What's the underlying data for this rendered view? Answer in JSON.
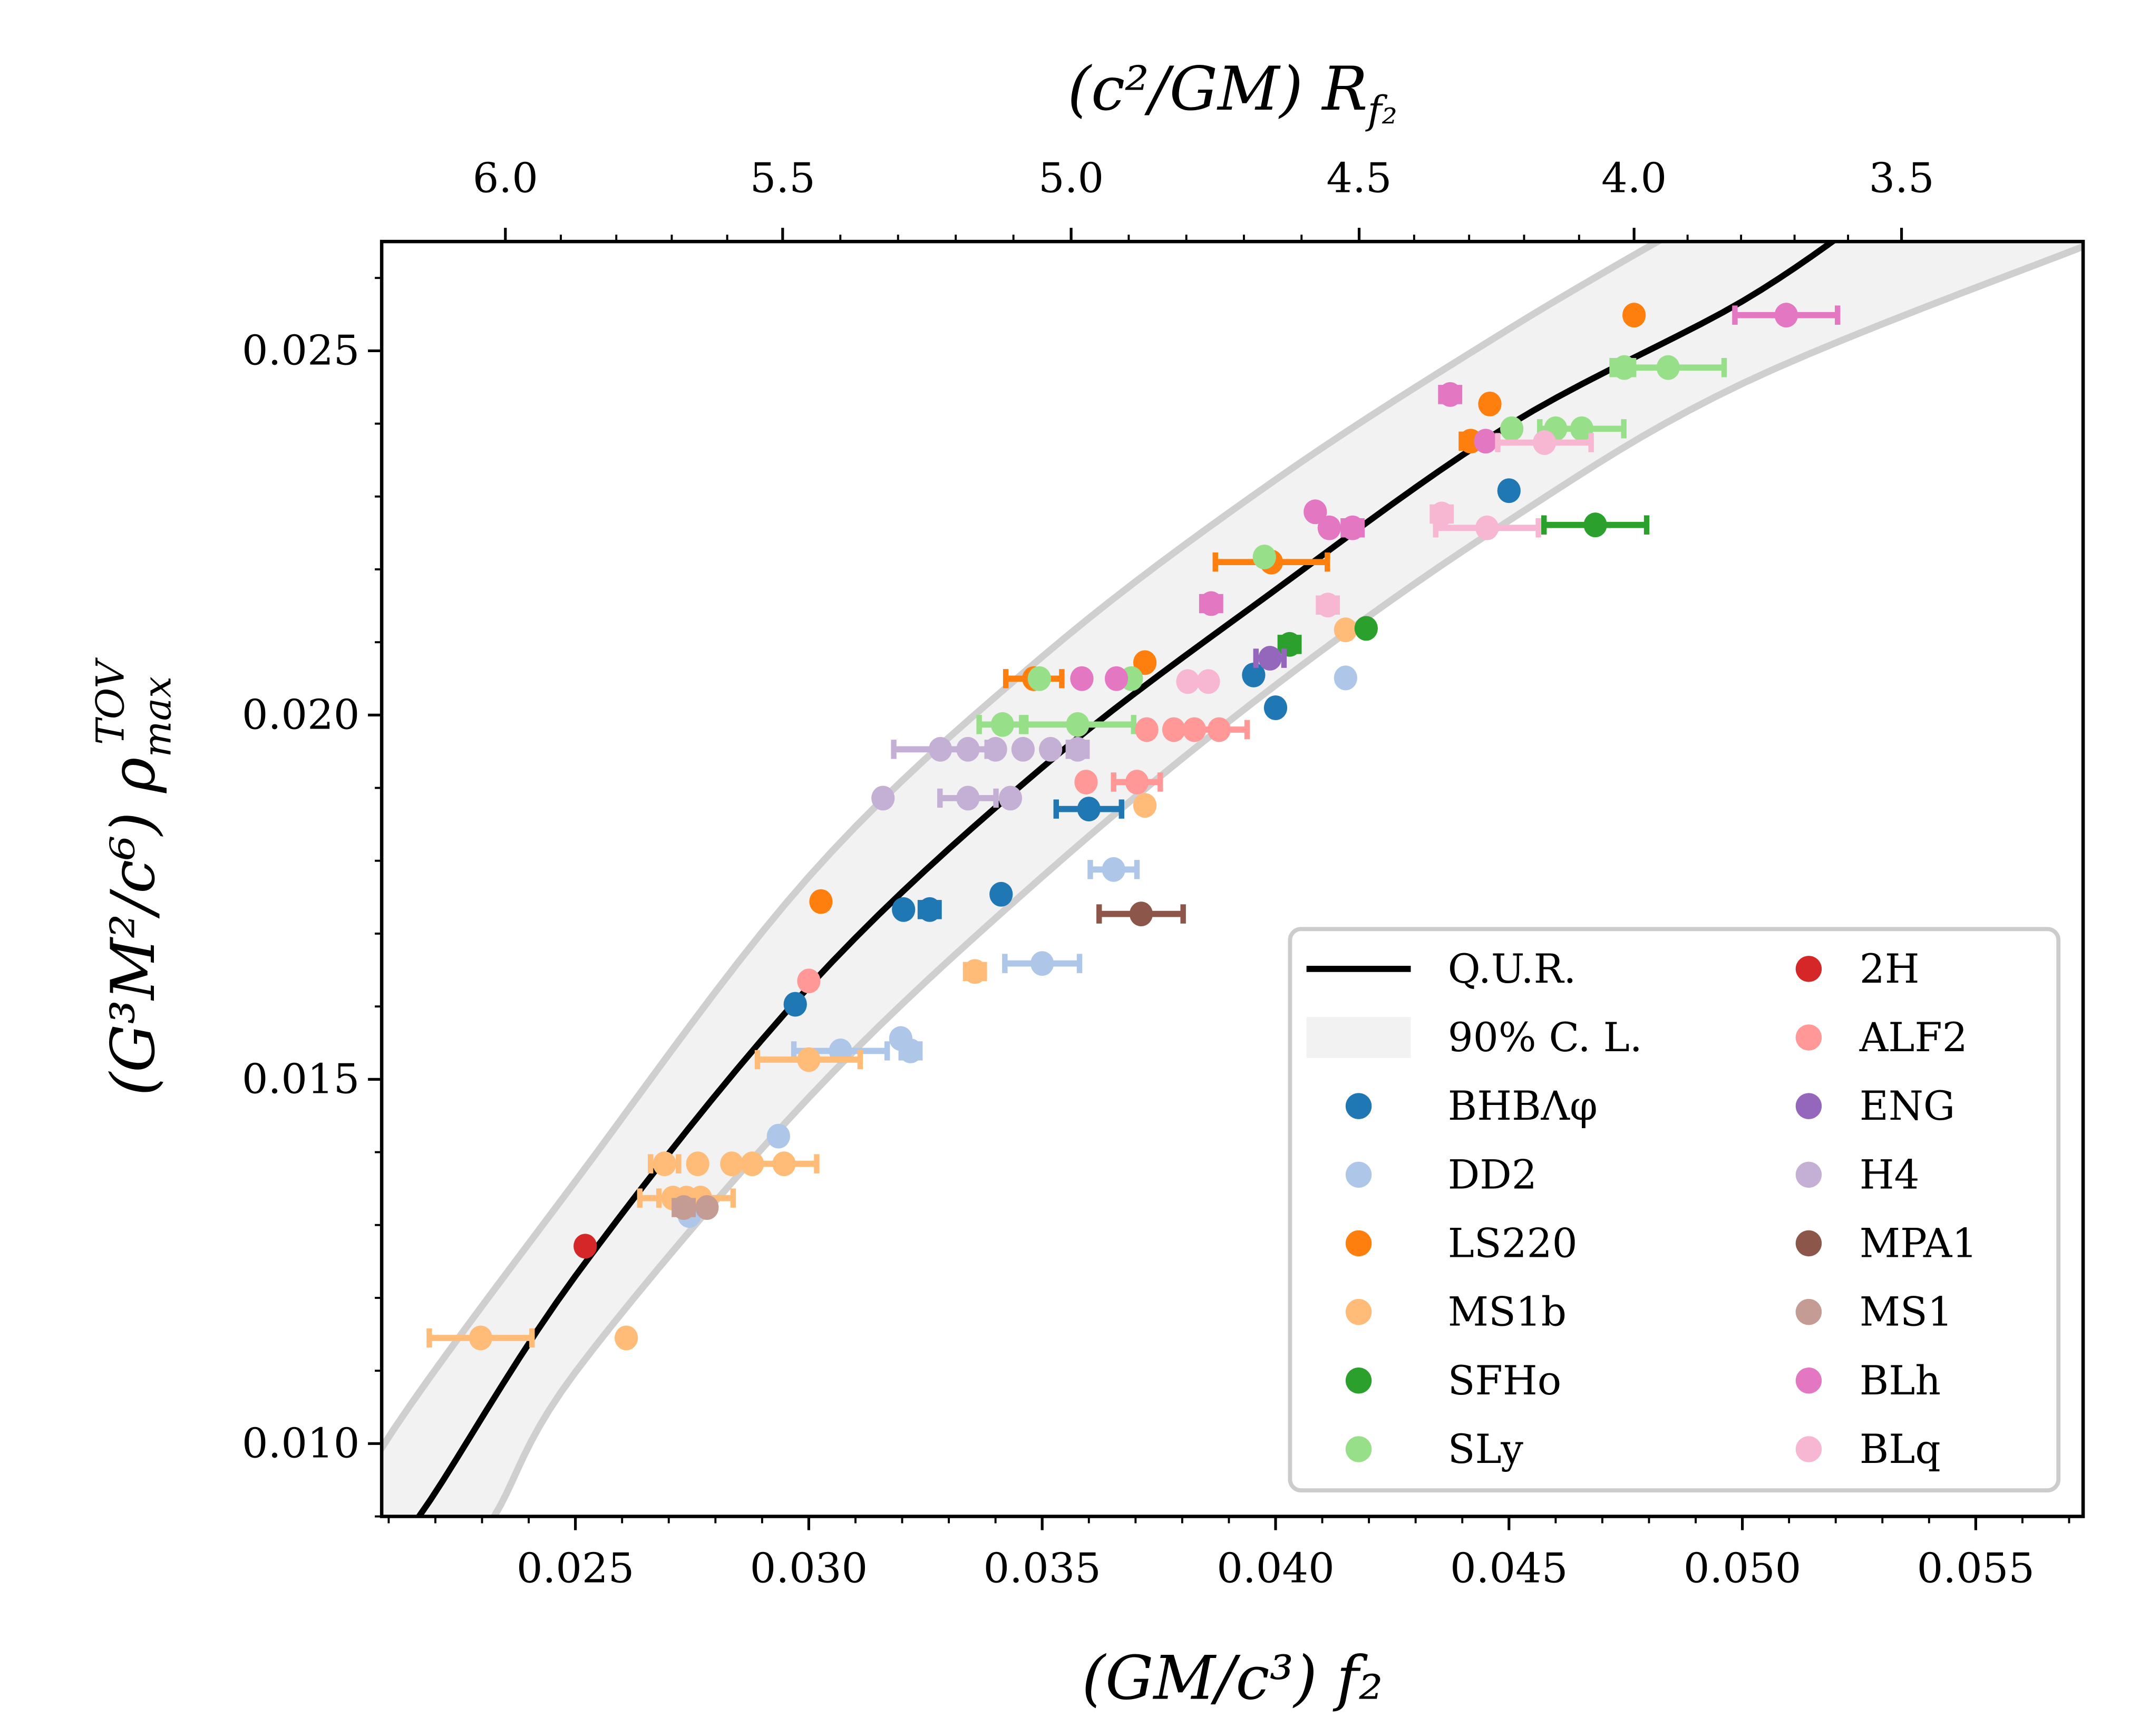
{
  "chart_data": {
    "type": "scatter",
    "xlabel": "(GM/c³) f₂",
    "top_xlabel": "(c²/GM) R",
    "top_xlabel_sub": "f₂",
    "ylabel_main": "(G³M²/c⁶) ρ",
    "ylabel_sub": "max",
    "ylabel_sup": "TOV",
    "xlim": [
      0.02085,
      0.0573
    ],
    "ylim": [
      0.009,
      0.0265
    ],
    "xticks": [
      "0.025",
      "0.030",
      "0.035",
      "0.040",
      "0.045",
      "0.050",
      "0.055"
    ],
    "yticks": [
      "0.010",
      "0.015",
      "0.020",
      "0.025"
    ],
    "top_xticks": [
      {
        "label": "6.0",
        "f": 0.0235
      },
      {
        "label": "5.5",
        "f": 0.02944
      },
      {
        "label": "5.0",
        "f": 0.03562
      },
      {
        "label": "4.5",
        "f": 0.04179
      },
      {
        "label": "4.0",
        "f": 0.04768
      },
      {
        "label": "3.5",
        "f": 0.05341
      }
    ],
    "grid": false,
    "legend_placement": "lower-right",
    "qur": {
      "name": "Q.U.R.",
      "color": "#000000",
      "points": [
        [
          0.0205,
          0.0083
        ],
        [
          0.02165,
          0.009
        ],
        [
          0.025,
          0.0123
        ],
        [
          0.03,
          0.01627
        ],
        [
          0.035,
          0.01928
        ],
        [
          0.04,
          0.02172
        ],
        [
          0.045,
          0.02398
        ],
        [
          0.05,
          0.02568
        ],
        [
          0.053,
          0.027
        ]
      ]
    },
    "band": {
      "name": "90% C. L.",
      "fill": "#f2f2f2",
      "edge": "#cfcfcf",
      "upper": [
        [
          0.02,
          0.0085
        ],
        [
          0.02085,
          0.00994
        ],
        [
          0.025,
          0.0136
        ],
        [
          0.03,
          0.01778
        ],
        [
          0.035,
          0.0208
        ],
        [
          0.04,
          0.02323
        ],
        [
          0.045,
          0.0253
        ],
        [
          0.049,
          0.0268
        ]
      ],
      "lower": [
        [
          0.022,
          0.0078
        ],
        [
          0.02326,
          0.009
        ],
        [
          0.025,
          0.01098
        ],
        [
          0.03,
          0.01475
        ],
        [
          0.035,
          0.01778
        ],
        [
          0.04,
          0.02041
        ],
        [
          0.045,
          0.02267
        ],
        [
          0.05,
          0.02455
        ],
        [
          0.0573,
          0.02643
        ],
        [
          0.059,
          0.0268
        ]
      ]
    },
    "series": [
      {
        "name": "BHBΛφ",
        "color": "#1f77b4",
        "points": [
          [
            0.02971,
            0.01603,
            0
          ],
          [
            0.03203,
            0.01733,
            0
          ],
          [
            0.03259,
            0.01733,
            0.0002
          ],
          [
            0.03412,
            0.01754,
            0
          ],
          [
            0.036,
            0.01871,
            0.0007
          ],
          [
            0.03953,
            0.02055,
            0
          ],
          [
            0.04,
            0.0201,
            0
          ],
          [
            0.045,
            0.02308,
            0
          ]
        ]
      },
      {
        "name": "DD2",
        "color": "#aec7e8",
        "points": [
          [
            0.02744,
            0.01313,
            0
          ],
          [
            0.02935,
            0.01422,
            0
          ],
          [
            0.03068,
            0.01539,
            0.001
          ],
          [
            0.03197,
            0.01556,
            0
          ],
          [
            0.03218,
            0.01539,
            0.0002
          ],
          [
            0.035,
            0.01659,
            0.0008
          ],
          [
            0.03653,
            0.01788,
            0.0005
          ],
          [
            0.0415,
            0.02051,
            0
          ]
        ]
      },
      {
        "name": "LS220",
        "color": "#ff7f0e",
        "points": [
          [
            0.03026,
            0.01744,
            0
          ],
          [
            0.03482,
            0.0205,
            0.0006
          ],
          [
            0.0372,
            0.02072,
            0
          ],
          [
            0.03991,
            0.0221,
            0.0012
          ],
          [
            0.04418,
            0.02376,
            0.0002
          ],
          [
            0.04459,
            0.02427,
            0
          ],
          [
            0.04768,
            0.02549,
            0
          ]
        ]
      },
      {
        "name": "MS1b",
        "color": "#ffbb78",
        "points": [
          [
            0.02297,
            0.01145,
            0.0011
          ],
          [
            0.02609,
            0.01145,
            0
          ],
          [
            0.02691,
            0.01384,
            0.0003
          ],
          [
            0.02762,
            0.01384,
            0
          ],
          [
            0.02835,
            0.01384,
            0
          ],
          [
            0.02879,
            0.01384,
            0
          ],
          [
            0.02947,
            0.01384,
            0.0007
          ],
          [
            0.02709,
            0.01337,
            0.0003
          ],
          [
            0.02738,
            0.01337,
            0.001
          ],
          [
            0.02768,
            0.01337,
            0
          ],
          [
            0.03,
            0.01527,
            0.0011
          ],
          [
            0.03356,
            0.01648,
            0.0002
          ],
          [
            0.0372,
            0.01876,
            0
          ],
          [
            0.0415,
            0.02117,
            0
          ]
        ]
      },
      {
        "name": "SFHo",
        "color": "#2ca02c",
        "points": [
          [
            0.0403,
            0.02097,
            0.0002
          ],
          [
            0.04194,
            0.02119,
            0
          ],
          [
            0.04685,
            0.02261,
            0.0011
          ]
        ]
      },
      {
        "name": "SLy",
        "color": "#98df8a",
        "points": [
          [
            0.03494,
            0.0205,
            0
          ],
          [
            0.03691,
            0.0205,
            0
          ],
          [
            0.03415,
            0.01987,
            0.0005
          ],
          [
            0.03576,
            0.01987,
            0.0012
          ],
          [
            0.03976,
            0.02217,
            0
          ],
          [
            0.04506,
            0.02393,
            0
          ],
          [
            0.046,
            0.02393,
            0
          ],
          [
            0.04656,
            0.02393,
            0.0009
          ],
          [
            0.04747,
            0.02477,
            0.0002
          ],
          [
            0.04841,
            0.02477,
            0.0012
          ]
        ]
      },
      {
        "name": "2H",
        "color": "#d62728",
        "points": [
          [
            0.02521,
            0.01271,
            0
          ]
        ]
      },
      {
        "name": "ALF2",
        "color": "#ff9896",
        "points": [
          [
            0.03,
            0.01635,
            0
          ],
          [
            0.03594,
            0.01908,
            0
          ],
          [
            0.03703,
            0.01908,
            0.0005
          ],
          [
            0.03724,
            0.0198,
            0
          ],
          [
            0.03782,
            0.0198,
            0
          ],
          [
            0.03826,
            0.0198,
            0
          ],
          [
            0.03879,
            0.0198,
            0.0006
          ]
        ]
      },
      {
        "name": "ENG",
        "color": "#9467bd",
        "points": [
          [
            0.03988,
            0.02078,
            0.0003
          ]
        ]
      },
      {
        "name": "H4",
        "color": "#c5b0d5",
        "points": [
          [
            0.03159,
            0.01886,
            0
          ],
          [
            0.03341,
            0.01886,
            0.0006
          ],
          [
            0.03432,
            0.01886,
            0
          ],
          [
            0.03282,
            0.01953,
            0.001
          ],
          [
            0.03341,
            0.01953,
            0
          ],
          [
            0.034,
            0.01953,
            0
          ],
          [
            0.03459,
            0.01953,
            0
          ],
          [
            0.03518,
            0.01953,
            0
          ],
          [
            0.03576,
            0.01953,
            0.0002
          ]
        ]
      },
      {
        "name": "MPA1",
        "color": "#8c564b",
        "points": [
          [
            0.03712,
            0.01727,
            0.0009
          ]
        ]
      },
      {
        "name": "MS1",
        "color": "#c49c94",
        "points": [
          [
            0.02732,
            0.01324,
            0.0002
          ],
          [
            0.02782,
            0.01324,
            0
          ]
        ]
      },
      {
        "name": "BLh",
        "color": "#e377c2",
        "points": [
          [
            0.03585,
            0.0205,
            0
          ],
          [
            0.03659,
            0.0205,
            0
          ],
          [
            0.03862,
            0.02153,
            0.0002
          ],
          [
            0.04085,
            0.02279,
            0
          ],
          [
            0.04115,
            0.02257,
            0
          ],
          [
            0.04165,
            0.02257,
            0.0002
          ],
          [
            0.04374,
            0.0244,
            0.0002
          ],
          [
            0.0445,
            0.02376,
            0
          ],
          [
            0.05094,
            0.02549,
            0.0011
          ]
        ]
      },
      {
        "name": "BLq",
        "color": "#f7b6d2",
        "points": [
          [
            0.03812,
            0.02046,
            0
          ],
          [
            0.03856,
            0.02046,
            0
          ],
          [
            0.04112,
            0.02151,
            0.0002
          ],
          [
            0.04356,
            0.02276,
            0.0002
          ],
          [
            0.04453,
            0.02257,
            0.0011
          ],
          [
            0.04576,
            0.02374,
            0.001
          ]
        ]
      }
    ]
  }
}
